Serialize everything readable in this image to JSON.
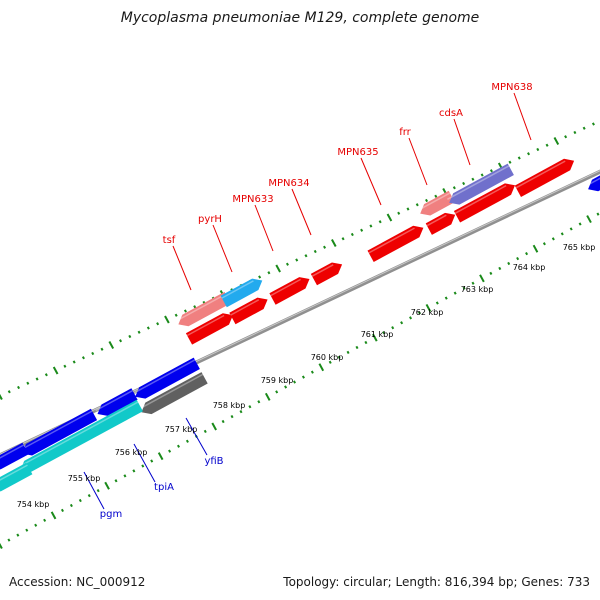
{
  "title": "Mycoplasma pneumoniae M129, complete genome",
  "footer": {
    "accession": "Accession: NC_000912",
    "summary": "Topology: circular; Length: 816,394 bp; Genes: 733"
  },
  "colors": {
    "forward_gene": "#ee0000",
    "forward_gene_light": "#f08080",
    "reverse_gene": "#0000ee",
    "cyan_gene": "#11c9c9",
    "light_blue_gene": "#22aaee",
    "purple_gene": "#7070cc",
    "gray_gene": "#606060",
    "backbone": "#909090",
    "tick": "#1a8a1a",
    "forward_label": "#e60000",
    "reverse_label": "#0000cc"
  },
  "forward_gene_labels": [
    "tsf",
    "pyrH",
    "MPN633",
    "MPN634",
    "MPN635",
    "frr",
    "cdsA",
    "MPN638"
  ],
  "reverse_gene_labels": [
    "pgm",
    "tpiA",
    "yfiB"
  ],
  "scale_labels": [
    "754 kbp",
    "755 kbp",
    "756 kbp",
    "757 kbp",
    "758 kbp",
    "759 kbp",
    "760 kbp",
    "761 kbp",
    "762 kbp",
    "763 kbp",
    "764 kbp",
    "765 kbp"
  ]
}
